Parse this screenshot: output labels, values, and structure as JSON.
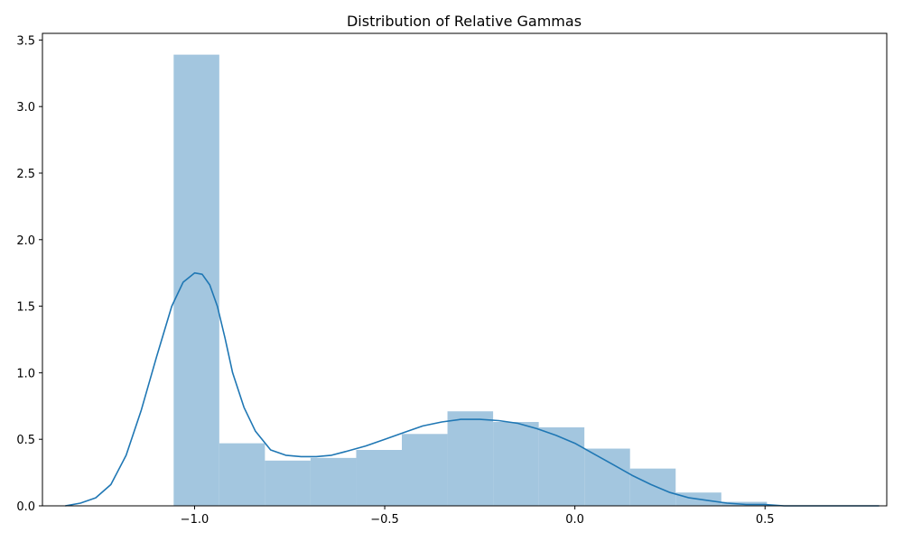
{
  "chart_data": {
    "type": "histogram",
    "title": "Distribution of Relative Gammas",
    "xlabel": "",
    "ylabel": "",
    "xlim": [
      -1.4,
      0.82
    ],
    "ylim": [
      0,
      3.55
    ],
    "x_ticks": [
      -1.0,
      -0.5,
      0.0,
      0.5
    ],
    "x_tick_labels": [
      "−1.0",
      "−0.5",
      "0.0",
      "0.5"
    ],
    "y_ticks": [
      0.0,
      0.5,
      1.0,
      1.5,
      2.0,
      2.5,
      3.0,
      3.5
    ],
    "y_tick_labels": [
      "0.0",
      "0.5",
      "1.0",
      "1.5",
      "2.0",
      "2.5",
      "3.0",
      "3.5"
    ],
    "grid": false,
    "colors": {
      "bars": "#a3c6df",
      "kde": "#1f77b4",
      "axes": "#000000"
    },
    "histogram": {
      "bin_edges": [
        -1.055,
        -0.935,
        -0.815,
        -0.695,
        -0.575,
        -0.455,
        -0.335,
        -0.215,
        -0.095,
        0.025,
        0.145,
        0.265,
        0.385,
        0.505
      ],
      "values": [
        3.39,
        0.47,
        0.34,
        0.36,
        0.42,
        0.54,
        0.71,
        0.63,
        0.59,
        0.43,
        0.28,
        0.1,
        0.03
      ]
    },
    "kde": {
      "x": [
        -1.34,
        -1.3,
        -1.26,
        -1.22,
        -1.18,
        -1.14,
        -1.1,
        -1.06,
        -1.03,
        -1.0,
        -0.98,
        -0.96,
        -0.94,
        -0.92,
        -0.9,
        -0.87,
        -0.84,
        -0.8,
        -0.76,
        -0.72,
        -0.68,
        -0.64,
        -0.6,
        -0.55,
        -0.5,
        -0.45,
        -0.4,
        -0.35,
        -0.3,
        -0.25,
        -0.2,
        -0.15,
        -0.1,
        -0.05,
        0.0,
        0.05,
        0.1,
        0.15,
        0.2,
        0.25,
        0.3,
        0.35,
        0.4,
        0.45,
        0.5,
        0.55,
        0.6,
        0.65,
        0.7,
        0.75,
        0.8
      ],
      "y": [
        0.0,
        0.02,
        0.06,
        0.16,
        0.38,
        0.72,
        1.12,
        1.5,
        1.68,
        1.75,
        1.74,
        1.66,
        1.5,
        1.26,
        1.0,
        0.74,
        0.56,
        0.42,
        0.38,
        0.37,
        0.37,
        0.38,
        0.41,
        0.45,
        0.5,
        0.55,
        0.6,
        0.63,
        0.65,
        0.65,
        0.64,
        0.62,
        0.58,
        0.53,
        0.47,
        0.39,
        0.31,
        0.23,
        0.16,
        0.1,
        0.06,
        0.04,
        0.02,
        0.01,
        0.01,
        0.0,
        0.0,
        0.0,
        0.0,
        0.0,
        0.0
      ]
    }
  }
}
